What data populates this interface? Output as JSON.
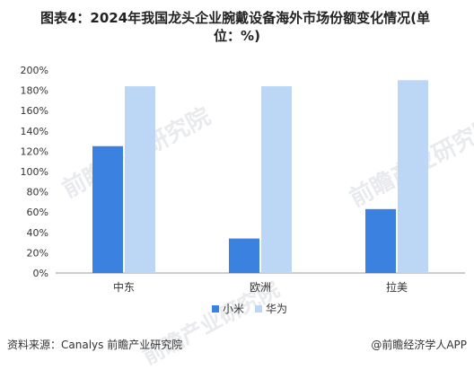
{
  "title_line1": "图表4：2024年我国龙头企业腕戴设备海外市场份额变化情况(单",
  "title_line2": "位：%)",
  "source": "资料来源：Canalys 前瞻产业研究院",
  "brand": "@前瞻经济学人APP",
  "watermark": "前瞻产业研究院",
  "colors": {
    "xiaomi": "#3b82e0",
    "huawei": "#bcd6f5",
    "axis": "#888888",
    "text": "#333333"
  },
  "chart_data": {
    "type": "bar",
    "title": "图表4：2024年我国龙头企业腕戴设备海外市场份额变化情况(单位：%)",
    "categories": [
      "中东",
      "欧洲",
      "拉美"
    ],
    "series": [
      {
        "name": "小米",
        "values": [
          125,
          34,
          63
        ]
      },
      {
        "name": "华为",
        "values": [
          184,
          184,
          190
        ]
      }
    ],
    "ylim": [
      0,
      200
    ],
    "yticks": [
      "0%",
      "20%",
      "40%",
      "60%",
      "80%",
      "100%",
      "120%",
      "140%",
      "160%",
      "180%",
      "200%"
    ],
    "grid": false,
    "legend": "bottom-center"
  }
}
